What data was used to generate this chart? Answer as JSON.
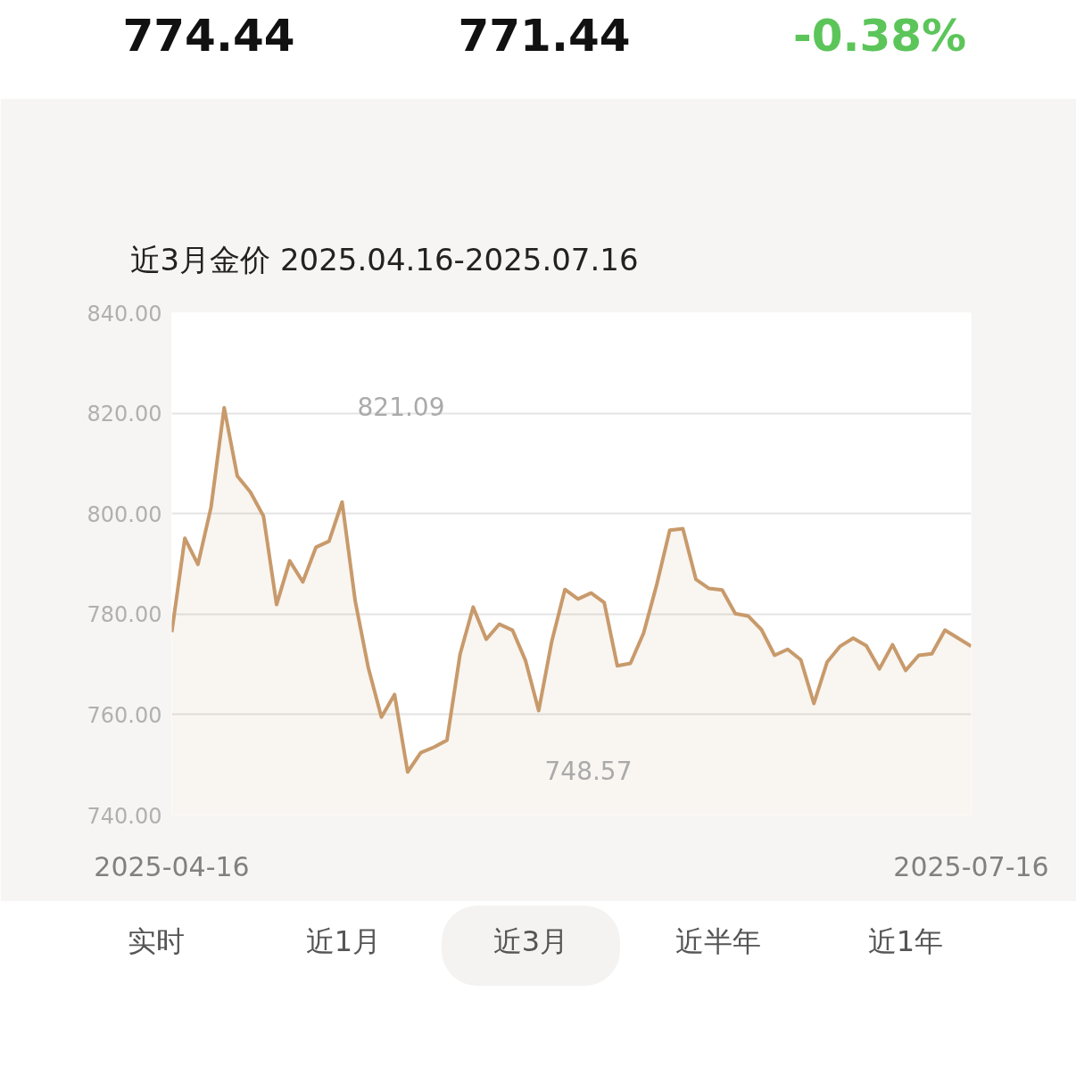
{
  "chart_data": {
    "type": "area",
    "title": "近3月金价 2025.04.16-2025.07.16",
    "categories": [
      "2025-04-16",
      null,
      null,
      null,
      null,
      null,
      null,
      null,
      null,
      null,
      null,
      null,
      null,
      null,
      null,
      null,
      null,
      null,
      null,
      null,
      null,
      null,
      null,
      null,
      null,
      null,
      null,
      null,
      null,
      null,
      null,
      null,
      null,
      null,
      null,
      null,
      null,
      null,
      null,
      null,
      null,
      null,
      null,
      null,
      null,
      null,
      null,
      null,
      null,
      null,
      null,
      null,
      null,
      null,
      null,
      null,
      null,
      null,
      null,
      null,
      null,
      "2025-07-16"
    ],
    "series": [
      {
        "color": "#c89a6b",
        "values": [
          776.4,
          795.1,
          789.9,
          801.3,
          821.09,
          807.5,
          804.3,
          799.5,
          781.9,
          790.6,
          786.4,
          793.3,
          794.5,
          802.3,
          782.6,
          769.3,
          759.5,
          764.0,
          748.57,
          752.4,
          753.5,
          754.9,
          772.0,
          781.4,
          775.0,
          778.0,
          776.8,
          770.7,
          760.8,
          774.6,
          784.9,
          783.0,
          784.2,
          782.3,
          769.7,
          770.2,
          776.2,
          785.8,
          796.7,
          797.0,
          786.9,
          785.1,
          784.8,
          780.1,
          779.6,
          776.9,
          771.8,
          773.0,
          770.9,
          762.2,
          770.4,
          773.6,
          775.2,
          773.7,
          769.1,
          773.9,
          768.8,
          771.8,
          772.1,
          776.8,
          775.2,
          773.6
        ]
      }
    ],
    "ylim": [
      740,
      840
    ],
    "yticks": [
      {
        "value": 740,
        "label": "740.00"
      },
      {
        "value": 760,
        "label": "760.00"
      },
      {
        "value": 780,
        "label": "780.00"
      },
      {
        "value": 800,
        "label": "800.00"
      },
      {
        "value": 820,
        "label": "820.00"
      },
      {
        "value": 840,
        "label": "840.00"
      }
    ],
    "grid": "y",
    "annotations": [
      "774.44",
      "771.44",
      "-0.38%",
      "实时",
      "近1月",
      "近3月",
      "近半年",
      "近1年",
      "821.09",
      "748.57"
    ]
  }
}
